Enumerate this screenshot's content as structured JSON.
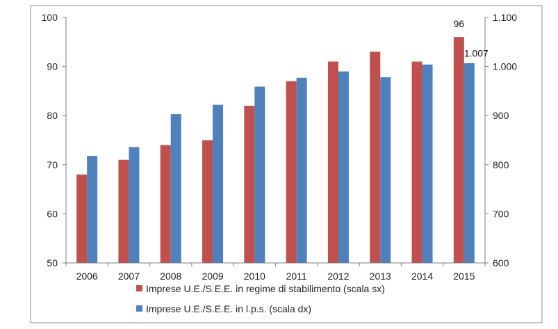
{
  "chart_data": {
    "type": "bar",
    "categories": [
      "2006",
      "2007",
      "2008",
      "2009",
      "2010",
      "2011",
      "2012",
      "2013",
      "2014",
      "2015"
    ],
    "series": [
      {
        "name": "Imprese U.E./S.E.E. in regime di stabilimento (scala sx)",
        "axis": "left",
        "color": "#c0504d",
        "values": [
          68,
          71,
          74,
          75,
          82,
          87,
          91,
          93,
          91,
          96
        ]
      },
      {
        "name": "Imprese U.E./S.E.E. in l.p.s. (scala dx)",
        "axis": "right",
        "color": "#4f81bd",
        "values": [
          818,
          836,
          903,
          922,
          959,
          977,
          990,
          978,
          1004,
          1007
        ]
      }
    ],
    "data_labels": [
      {
        "series": 0,
        "index": 9,
        "text": "96"
      },
      {
        "series": 1,
        "index": 9,
        "text": "1.007"
      }
    ],
    "y_left": {
      "min": 50,
      "max": 100,
      "ticks": [
        "50",
        "60",
        "70",
        "80",
        "90",
        "100"
      ]
    },
    "y_right": {
      "min": 600,
      "max": 1100,
      "ticks": [
        "600",
        "700",
        "800",
        "900",
        "1.000",
        "1.100"
      ]
    },
    "grid": false,
    "legend_position": "bottom",
    "title": "",
    "xlabel": "",
    "ylabel": ""
  }
}
